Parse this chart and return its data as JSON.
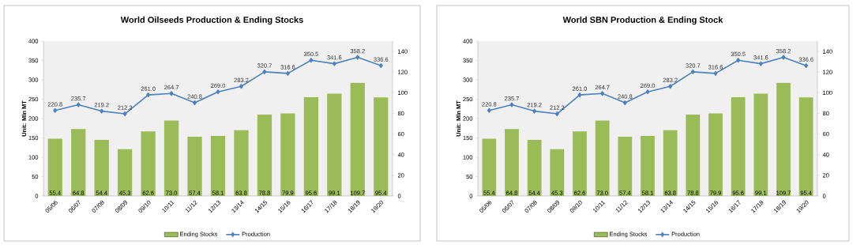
{
  "chart_data": [
    {
      "type": "bar",
      "title": "World Oilseeds Production & Ending Stocks",
      "ylabel": "Unit: Mln MT",
      "categories": [
        "05/06",
        "06/07",
        "07/08",
        "08/09",
        "09/10",
        "10/11",
        "11/12",
        "12/13",
        "13/14",
        "14/15",
        "15/16",
        "16/17",
        "17/18",
        "18/19",
        "19/20"
      ],
      "series": [
        {
          "name": "Ending Stocks",
          "axis": "y2",
          "color": "#9bbb59",
          "values": [
            55.4,
            64.8,
            54.4,
            45.3,
            62.6,
            73.0,
            57.4,
            58.1,
            63.8,
            78.8,
            79.9,
            95.6,
            99.1,
            109.7,
            95.4
          ],
          "value_labels": [
            "55.4",
            "64.8",
            "54.4",
            "45.3",
            "62.6",
            "73.0",
            "57.4",
            "58.1",
            "63.8",
            "78.8",
            "79.9",
            "95.6",
            "99.1",
            "109.7",
            "95.4"
          ]
        },
        {
          "name": "Production",
          "type": "line",
          "axis": "y",
          "color": "#4f81bd",
          "marker": "diamond",
          "values": [
            220.8,
            235.7,
            219.2,
            212.2,
            261.0,
            264.7,
            240.8,
            269.0,
            283.2,
            320.7,
            316.6,
            350.5,
            341.6,
            358.2,
            336.6
          ],
          "value_labels": [
            "220.8",
            "235.7",
            "219.2",
            "212.2",
            "261.0",
            "264.7",
            "240.8",
            "269.0",
            "283.2",
            "320.7",
            "316.6",
            "350.5",
            "341.6",
            "358.2",
            "336.6"
          ]
        }
      ],
      "ylim": [
        0,
        400
      ],
      "yticks": [
        0,
        50,
        100,
        150,
        200,
        250,
        300,
        350,
        400
      ],
      "y2lim": [
        0,
        150
      ],
      "y2ticks": [
        0,
        20,
        40,
        60,
        80,
        100,
        120,
        140
      ],
      "legend": "bottom"
    },
    {
      "type": "bar",
      "title": "World SBN Production & Ending Stock",
      "ylabel": "Unit: Mln MT",
      "categories": [
        "05/06",
        "06/07",
        "07/08",
        "08/09",
        "09/10",
        "10/11",
        "11/12",
        "12/13",
        "13/14",
        "14/15",
        "15/16",
        "16/17",
        "17/18",
        "18/19",
        "19/20"
      ],
      "series": [
        {
          "name": "Ending Stocks",
          "axis": "y2",
          "color": "#9bbb59",
          "values": [
            55.4,
            64.8,
            54.4,
            45.3,
            62.6,
            73.0,
            57.4,
            58.1,
            63.8,
            78.8,
            79.9,
            95.6,
            99.1,
            109.7,
            95.4
          ],
          "value_labels": [
            "55.4",
            "64.8",
            "54.4",
            "45.3",
            "62.6",
            "73.0",
            "57.4",
            "58.1",
            "63.8",
            "78.8",
            "79.9",
            "95.6",
            "99.1",
            "109.7",
            "95.4"
          ]
        },
        {
          "name": "Production",
          "type": "line",
          "axis": "y",
          "color": "#4f81bd",
          "marker": "diamond",
          "values": [
            220.8,
            235.7,
            219.2,
            212.2,
            261.0,
            264.7,
            240.8,
            269.0,
            283.2,
            320.7,
            316.6,
            350.5,
            341.6,
            358.2,
            336.6
          ],
          "value_labels": [
            "220.8",
            "235.7",
            "219.2",
            "212.2",
            "261.0",
            "264.7",
            "240.8",
            "269.0",
            "283.2",
            "320.7",
            "316.6",
            "350.5",
            "341.6",
            "358.2",
            "336.6"
          ]
        }
      ],
      "ylim": [
        0,
        400
      ],
      "yticks": [
        0,
        50,
        100,
        150,
        200,
        250,
        300,
        350,
        400
      ],
      "y2lim": [
        0,
        150
      ],
      "y2ticks": [
        0,
        20,
        40,
        60,
        80,
        100,
        120,
        140
      ],
      "legend": "bottom"
    }
  ]
}
